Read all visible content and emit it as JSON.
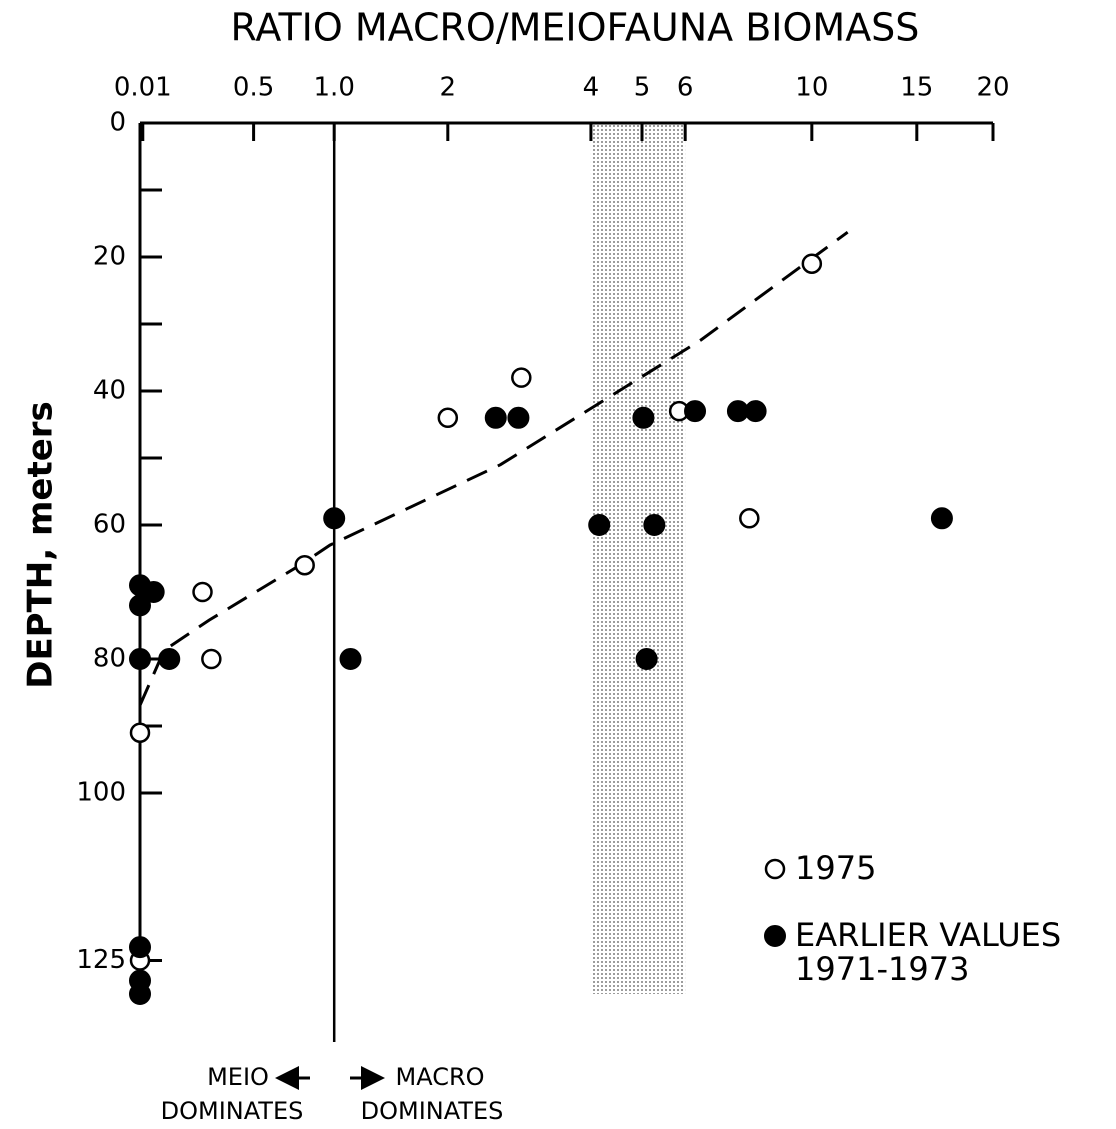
{
  "chart_data": {
    "type": "scatter",
    "title": "RATIO MACRO/MEIOFAUNA BIOMASS",
    "ylabel": "DEPTH, meters",
    "xscale": "log1p",
    "xlim": [
      0,
      20
    ],
    "xticks": [
      0.01,
      0.5,
      {
        "value": 1,
        "label": "1.0"
      },
      2,
      4,
      5,
      6,
      10,
      15,
      20
    ],
    "ylim": [
      0,
      130
    ],
    "yinverted": true,
    "yticks": [
      0,
      20,
      40,
      60,
      80,
      100,
      125
    ],
    "yminor_ticks": [
      10,
      30,
      50,
      70,
      90
    ],
    "shaded_band": {
      "x": [
        4,
        6
      ],
      "color": "#bbbbbb"
    },
    "reference_line_x": 1,
    "annotations": {
      "left": "MEIO",
      "right": "MACRO",
      "left_sub": "DOMINATES",
      "right_sub": "DOMINATES"
    },
    "trend": {
      "x": [
        0,
        0.09,
        0.28,
        0.77,
        0.97,
        2.62,
        6.4,
        11.5
      ],
      "y": [
        86.9,
        78.7,
        74.2,
        66,
        63,
        51,
        32.4,
        16.3
      ]
    },
    "series": [
      {
        "name": "1975",
        "marker": "open",
        "color": "#000000",
        "x": [
          10,
          2.9,
          2.0,
          5.85,
          7.8,
          0.8,
          0.25,
          0.29,
          0,
          0
        ],
        "values": [
          21,
          38,
          44,
          43,
          59,
          66,
          70,
          80,
          91,
          125
        ]
      },
      {
        "name": "EARLIER VALUES 1971-1973",
        "marker": "filled",
        "color": "#000000",
        "x": [
          0,
          0,
          0.05,
          0,
          0.11,
          1.0,
          1.12,
          2.56,
          2.86,
          4.15,
          5.03,
          5.27,
          6.25,
          7.45,
          8.0,
          16.5,
          5.1,
          0,
          0,
          0
        ],
        "values": [
          69,
          72,
          70,
          80,
          80,
          59,
          80,
          44,
          44,
          60,
          44,
          60,
          43,
          43,
          43,
          59,
          80,
          123,
          128,
          130
        ]
      }
    ]
  }
}
